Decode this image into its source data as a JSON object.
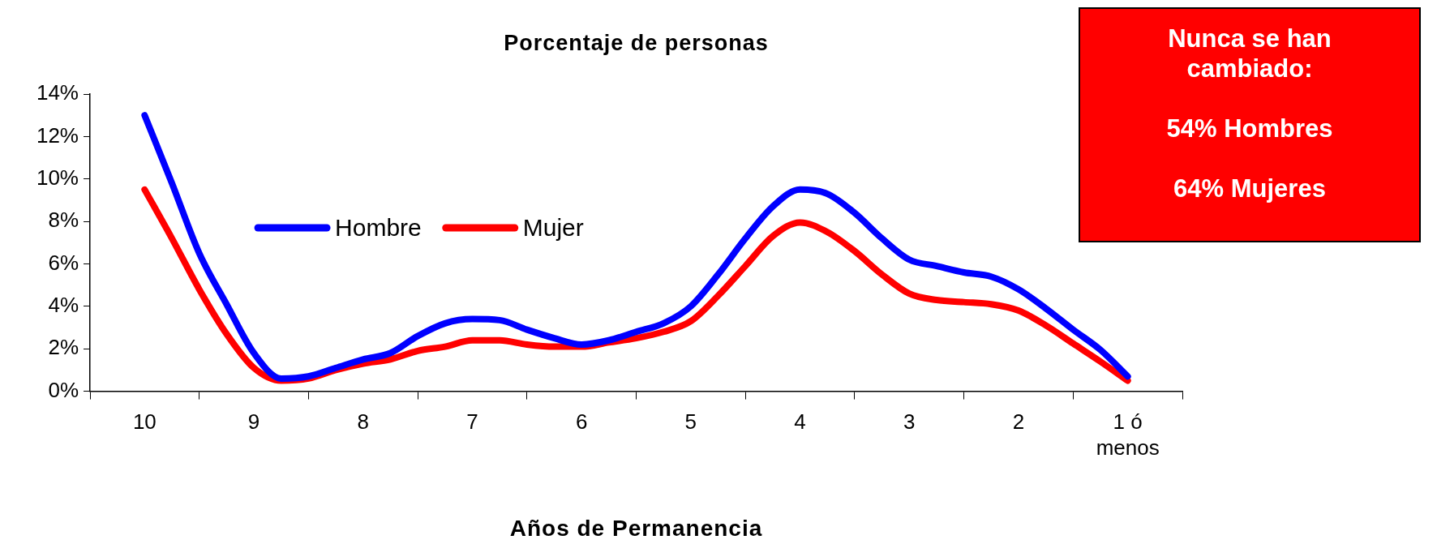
{
  "chart_data": {
    "type": "line",
    "title": "Porcentaje de personas",
    "xlabel": "Años de Permanencia",
    "x": [
      10,
      9.75,
      9.5,
      9.25,
      9,
      8.75,
      8.5,
      8.25,
      8,
      7.75,
      7.5,
      7.25,
      7,
      6.75,
      6.5,
      6.25,
      6,
      5.75,
      5.5,
      5.25,
      5,
      4.75,
      4.5,
      4.25,
      4,
      3.75,
      3.5,
      3.25,
      3,
      2.75,
      2.5,
      2.25,
      2,
      1.75,
      1.5,
      1.25,
      1
    ],
    "series": [
      {
        "name": "Hombre",
        "color": "#0000ff",
        "values": [
          13.0,
          9.8,
          6.5,
          4.1,
          1.8,
          0.6,
          0.7,
          1.1,
          1.5,
          1.8,
          2.6,
          3.2,
          3.4,
          3.35,
          2.9,
          2.5,
          2.2,
          2.4,
          2.8,
          3.2,
          4.0,
          5.5,
          7.2,
          8.7,
          9.5,
          9.3,
          8.4,
          7.2,
          6.2,
          5.9,
          5.6,
          5.4,
          4.8,
          3.9,
          2.9,
          1.95,
          0.7
        ]
      },
      {
        "name": "Mujer",
        "color": "#ff0000",
        "values": [
          9.5,
          7.2,
          4.8,
          2.7,
          1.1,
          0.5,
          0.6,
          1.0,
          1.3,
          1.5,
          1.9,
          2.1,
          2.4,
          2.4,
          2.2,
          2.1,
          2.1,
          2.3,
          2.5,
          2.8,
          3.3,
          4.5,
          5.9,
          7.3,
          7.95,
          7.5,
          6.6,
          5.5,
          4.6,
          4.3,
          4.2,
          4.1,
          3.8,
          3.1,
          2.25,
          1.4,
          0.5
        ]
      }
    ],
    "xlim": [
      10.5,
      0.5
    ],
    "xticks": [
      {
        "value": 10.5,
        "label": null
      },
      10,
      {
        "value": 9.5,
        "label": null
      },
      9,
      {
        "value": 8.5,
        "label": null
      },
      8,
      {
        "value": 7.5,
        "label": null
      },
      7,
      {
        "value": 6.5,
        "label": null
      },
      6,
      {
        "value": 5.5,
        "label": null
      },
      5,
      {
        "value": 4.5,
        "label": null
      },
      4,
      {
        "value": 3.5,
        "label": null
      },
      3,
      {
        "value": 2.5,
        "label": null
      },
      2,
      {
        "value": 1.5,
        "label": null
      },
      {
        "value": 1,
        "label": "1 ó menos"
      },
      {
        "value": 0.5,
        "label": null
      }
    ],
    "ylim": [
      0,
      14
    ],
    "yticks": [
      {
        "value": 0,
        "label": "0%"
      },
      {
        "value": 2,
        "label": "2%"
      },
      {
        "value": 4,
        "label": "4%"
      },
      {
        "value": 6,
        "label": "6%"
      },
      {
        "value": 8,
        "label": "8%"
      },
      {
        "value": 10,
        "label": "10%"
      },
      {
        "value": 12,
        "label": "12%"
      },
      {
        "value": 14,
        "label": "14%"
      }
    ],
    "grid": false,
    "legend": "center left",
    "marker": "none",
    "line_style": "solid",
    "annotations": [
      "Nunca se han cambiado:\n\n54% Hombres\n\n64% Mujeres"
    ]
  }
}
